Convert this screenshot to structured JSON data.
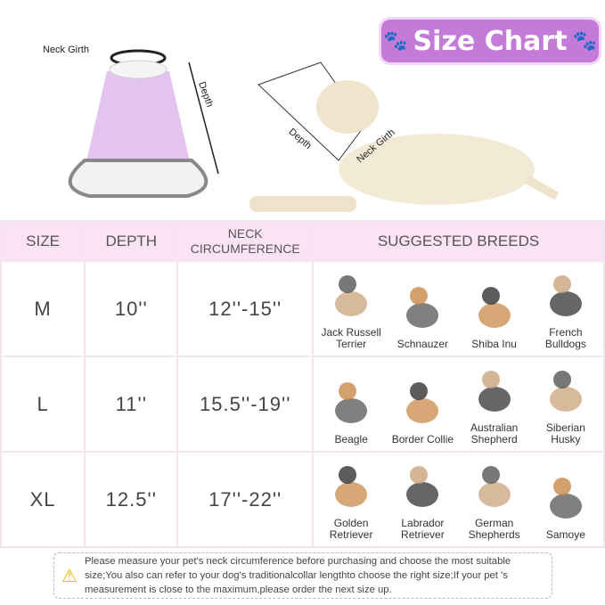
{
  "header": {
    "title": "Size Chart",
    "neck_girth_label": "Neck Girth",
    "depth_label": "Depth",
    "dog_depth_label": "Depth",
    "dog_neck_label": "Neck Girth"
  },
  "table": {
    "columns": [
      "SIZE",
      "DEPTH",
      "NECK CIRCUMFERENCE",
      "SUGGESTED BREEDS"
    ],
    "rows": [
      {
        "size": "M",
        "depth": "10''",
        "neck": "12''-15''",
        "breeds": [
          "Jack Russell Terrier",
          "Schnauzer",
          "Shiba Inu",
          "French Bulldogs"
        ]
      },
      {
        "size": "L",
        "depth": "11''",
        "neck": "15.5''-19''",
        "breeds": [
          "Beagle",
          "Border Collie",
          "Australian Shepherd",
          "Siberian Husky"
        ]
      },
      {
        "size": "XL",
        "depth": "12.5''",
        "neck": "17''-22''",
        "breeds": [
          "Golden Retriever",
          "Labrador Retriever",
          "German Shepherds",
          "Samoye"
        ]
      }
    ]
  },
  "note": {
    "icon": "warning-icon",
    "text": "Please measure your pet's neck circumference before purchasing and choose the most suitable size;You also can refer to your dog's traditionalcollar lengthto choose the right size;If your pet 's measurement is close to the maximum,please order the next size up."
  },
  "colors": {
    "badge": "#c47ad8",
    "header_row": "#fbe3f6",
    "cone": "#e3c4f0"
  }
}
